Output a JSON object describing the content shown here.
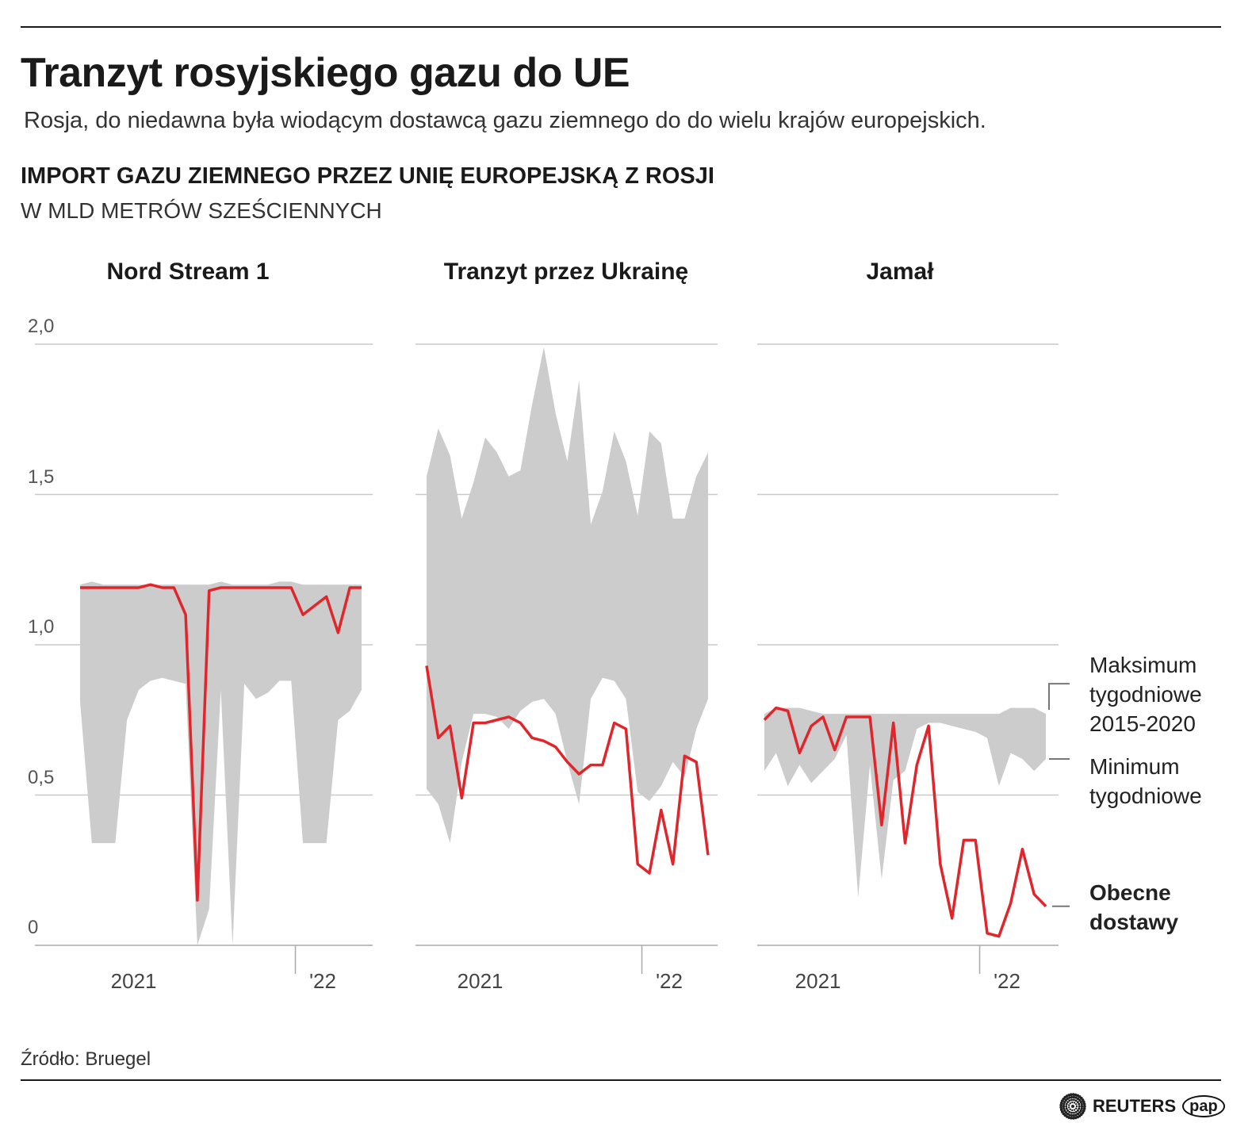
{
  "header": {
    "title": "Tranzyt rosyjskiego gazu do UE",
    "subtitle": "Rosja, do niedawna była wiodącym dostawcą gazu ziemnego do do wielu krajów europejskich.",
    "chart_title": "IMPORT GAZU ZIEMNEGO PRZEZ UNIĘ EUROPEJSKĄ Z ROSJI",
    "unit": "W MLD METRÓW SZEŚCIENNYCH"
  },
  "legend": {
    "max_label": [
      "Maksimum",
      "tygodniowe",
      "2015-2020"
    ],
    "min_label": [
      "Minimum",
      "tygodniowe"
    ],
    "current_label": [
      "Obecne",
      "dostawy"
    ]
  },
  "footer": {
    "source": "Źródło: Bruegel",
    "logo_reuters": "REUTERS",
    "logo_pap": "pap"
  },
  "colors": {
    "current": "#e0262b",
    "range": "#cccccc",
    "grid": "#c9c9c9"
  },
  "chart_data": {
    "type": "area",
    "ylim": [
      0,
      2.0
    ],
    "yticks": [
      0,
      0.5,
      1.0,
      1.5,
      2.0
    ],
    "ytick_labels": [
      "0",
      "0,5",
      "1,0",
      "1,5",
      "2,0"
    ],
    "xticks": [
      {
        "label": "2021",
        "date": "2021-06-23"
      },
      {
        "label": "'22",
        "date": "2022-02-15",
        "tick_date": "2022-01-01"
      }
    ],
    "grid": true,
    "dates": [
      "2021-04-19",
      "2021-05-03",
      "2021-05-17",
      "2021-05-31",
      "2021-06-14",
      "2021-06-28",
      "2021-07-12",
      "2021-07-26",
      "2021-08-09",
      "2021-08-23",
      "2021-09-06",
      "2021-09-20",
      "2021-10-04",
      "2021-10-18",
      "2021-11-01",
      "2021-11-15",
      "2021-11-29",
      "2021-12-13",
      "2021-12-27",
      "2022-01-10",
      "2022-01-24",
      "2022-02-07",
      "2022-02-21",
      "2022-03-07",
      "2022-03-21"
    ],
    "panels": [
      {
        "title": "Nord Stream 1",
        "max": [
          1.2,
          1.21,
          1.2,
          1.2,
          1.2,
          1.2,
          1.2,
          1.2,
          1.2,
          1.2,
          1.2,
          1.2,
          1.21,
          1.2,
          1.2,
          1.2,
          1.2,
          1.21,
          1.21,
          1.2,
          1.2,
          1.2,
          1.2,
          1.2,
          1.2
        ],
        "min": [
          0.81,
          0.34,
          0.34,
          0.34,
          0.75,
          0.85,
          0.88,
          0.89,
          0.88,
          0.87,
          0.0,
          0.12,
          0.85,
          0.0,
          0.87,
          0.82,
          0.84,
          0.88,
          0.88,
          0.34,
          0.34,
          0.34,
          0.75,
          0.78,
          0.85
        ],
        "current": [
          1.19,
          1.19,
          1.19,
          1.19,
          1.19,
          1.19,
          1.2,
          1.19,
          1.19,
          1.1,
          0.15,
          1.18,
          1.19,
          1.19,
          1.19,
          1.19,
          1.19,
          1.19,
          1.19,
          1.1,
          1.13,
          1.16,
          1.04,
          1.19,
          1.19
        ]
      },
      {
        "title": "Tranzyt przez Ukrainę",
        "max": [
          1.56,
          1.72,
          1.63,
          1.42,
          1.54,
          1.69,
          1.64,
          1.56,
          1.58,
          1.8,
          1.99,
          1.77,
          1.61,
          1.88,
          1.4,
          1.51,
          1.71,
          1.61,
          1.43,
          1.71,
          1.67,
          1.42,
          1.42,
          1.56,
          1.64
        ],
        "min": [
          0.52,
          0.47,
          0.34,
          0.61,
          0.77,
          0.77,
          0.76,
          0.72,
          0.78,
          0.81,
          0.82,
          0.77,
          0.61,
          0.47,
          0.82,
          0.89,
          0.88,
          0.82,
          0.51,
          0.48,
          0.53,
          0.61,
          0.56,
          0.72,
          0.82
        ],
        "current": [
          0.93,
          0.69,
          0.73,
          0.49,
          0.74,
          0.74,
          0.75,
          0.76,
          0.74,
          0.69,
          0.68,
          0.66,
          0.61,
          0.57,
          0.6,
          0.6,
          0.74,
          0.72,
          0.27,
          0.24,
          0.45,
          0.27,
          0.63,
          0.61,
          0.3
        ]
      },
      {
        "title": "Jamał",
        "max": [
          0.77,
          0.79,
          0.79,
          0.79,
          0.78,
          0.77,
          0.77,
          0.77,
          0.77,
          0.77,
          0.77,
          0.77,
          0.77,
          0.77,
          0.77,
          0.77,
          0.77,
          0.77,
          0.77,
          0.77,
          0.77,
          0.79,
          0.79,
          0.79,
          0.77
        ],
        "min": [
          0.58,
          0.64,
          0.53,
          0.6,
          0.54,
          0.58,
          0.62,
          0.7,
          0.16,
          0.6,
          0.22,
          0.55,
          0.58,
          0.72,
          0.74,
          0.74,
          0.73,
          0.72,
          0.71,
          0.69,
          0.53,
          0.64,
          0.62,
          0.58,
          0.62
        ],
        "current": [
          0.75,
          0.79,
          0.78,
          0.64,
          0.73,
          0.76,
          0.65,
          0.76,
          0.76,
          0.76,
          0.4,
          0.74,
          0.34,
          0.6,
          0.73,
          0.27,
          0.09,
          0.35,
          0.35,
          0.04,
          0.03,
          0.14,
          0.32,
          0.17,
          0.13
        ]
      }
    ]
  }
}
